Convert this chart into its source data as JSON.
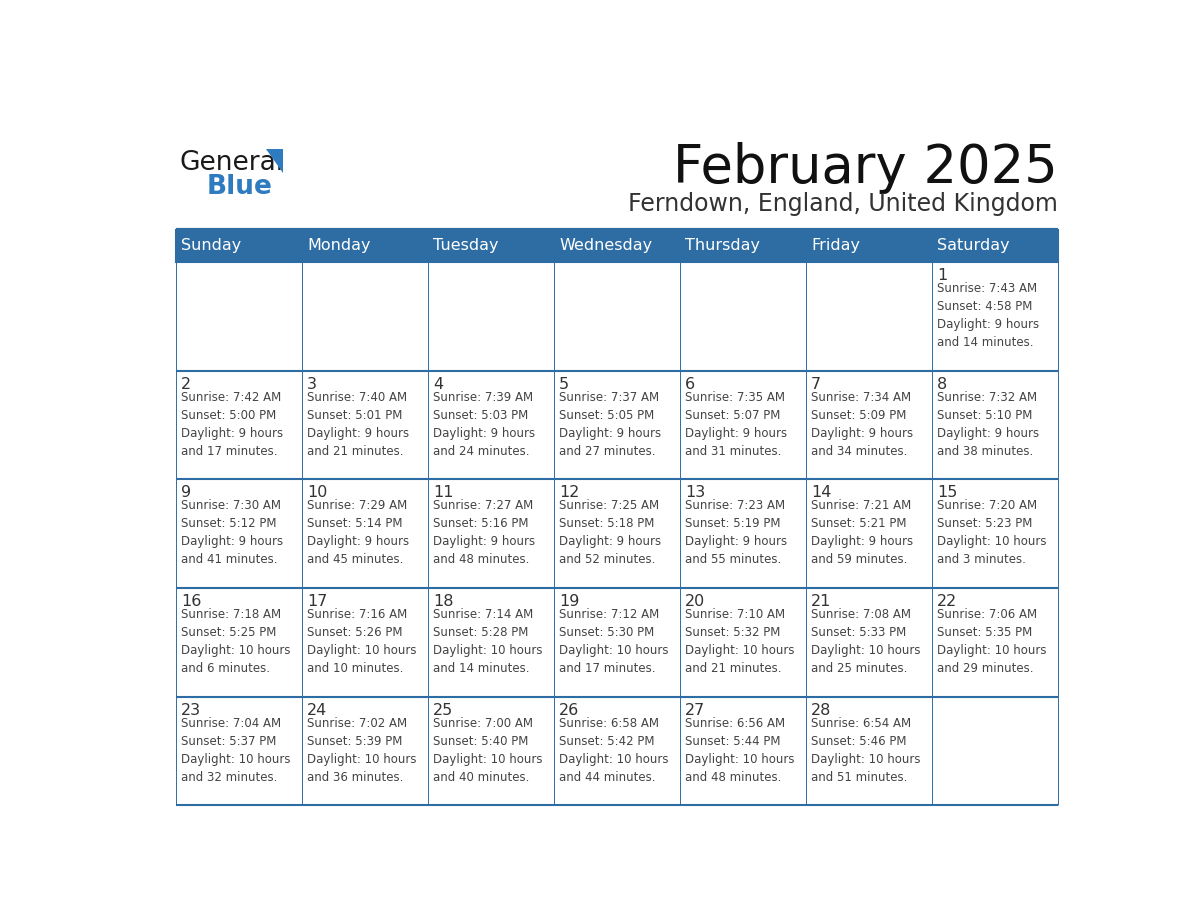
{
  "title": "February 2025",
  "subtitle": "Ferndown, England, United Kingdom",
  "days_of_week": [
    "Sunday",
    "Monday",
    "Tuesday",
    "Wednesday",
    "Thursday",
    "Friday",
    "Saturday"
  ],
  "header_bg": "#2E6DA4",
  "header_text": "#FFFFFF",
  "cell_bg": "#FFFFFF",
  "cell_bg_alt": "#F2F4F7",
  "border_color": "#2E6DA4",
  "row_top_line_color": "#2E6DA4",
  "day_num_color": "#333333",
  "cell_text_color": "#444444",
  "title_color": "#111111",
  "subtitle_color": "#333333",
  "logo_general_color": "#1a1a1a",
  "logo_blue_color": "#2E7BBF",
  "logo_triangle_color": "#2E7BBF",
  "weeks": [
    [
      {
        "day": null,
        "info": null
      },
      {
        "day": null,
        "info": null
      },
      {
        "day": null,
        "info": null
      },
      {
        "day": null,
        "info": null
      },
      {
        "day": null,
        "info": null
      },
      {
        "day": null,
        "info": null
      },
      {
        "day": 1,
        "info": "Sunrise: 7:43 AM\nSunset: 4:58 PM\nDaylight: 9 hours\nand 14 minutes."
      }
    ],
    [
      {
        "day": 2,
        "info": "Sunrise: 7:42 AM\nSunset: 5:00 PM\nDaylight: 9 hours\nand 17 minutes."
      },
      {
        "day": 3,
        "info": "Sunrise: 7:40 AM\nSunset: 5:01 PM\nDaylight: 9 hours\nand 21 minutes."
      },
      {
        "day": 4,
        "info": "Sunrise: 7:39 AM\nSunset: 5:03 PM\nDaylight: 9 hours\nand 24 minutes."
      },
      {
        "day": 5,
        "info": "Sunrise: 7:37 AM\nSunset: 5:05 PM\nDaylight: 9 hours\nand 27 minutes."
      },
      {
        "day": 6,
        "info": "Sunrise: 7:35 AM\nSunset: 5:07 PM\nDaylight: 9 hours\nand 31 minutes."
      },
      {
        "day": 7,
        "info": "Sunrise: 7:34 AM\nSunset: 5:09 PM\nDaylight: 9 hours\nand 34 minutes."
      },
      {
        "day": 8,
        "info": "Sunrise: 7:32 AM\nSunset: 5:10 PM\nDaylight: 9 hours\nand 38 minutes."
      }
    ],
    [
      {
        "day": 9,
        "info": "Sunrise: 7:30 AM\nSunset: 5:12 PM\nDaylight: 9 hours\nand 41 minutes."
      },
      {
        "day": 10,
        "info": "Sunrise: 7:29 AM\nSunset: 5:14 PM\nDaylight: 9 hours\nand 45 minutes."
      },
      {
        "day": 11,
        "info": "Sunrise: 7:27 AM\nSunset: 5:16 PM\nDaylight: 9 hours\nand 48 minutes."
      },
      {
        "day": 12,
        "info": "Sunrise: 7:25 AM\nSunset: 5:18 PM\nDaylight: 9 hours\nand 52 minutes."
      },
      {
        "day": 13,
        "info": "Sunrise: 7:23 AM\nSunset: 5:19 PM\nDaylight: 9 hours\nand 55 minutes."
      },
      {
        "day": 14,
        "info": "Sunrise: 7:21 AM\nSunset: 5:21 PM\nDaylight: 9 hours\nand 59 minutes."
      },
      {
        "day": 15,
        "info": "Sunrise: 7:20 AM\nSunset: 5:23 PM\nDaylight: 10 hours\nand 3 minutes."
      }
    ],
    [
      {
        "day": 16,
        "info": "Sunrise: 7:18 AM\nSunset: 5:25 PM\nDaylight: 10 hours\nand 6 minutes."
      },
      {
        "day": 17,
        "info": "Sunrise: 7:16 AM\nSunset: 5:26 PM\nDaylight: 10 hours\nand 10 minutes."
      },
      {
        "day": 18,
        "info": "Sunrise: 7:14 AM\nSunset: 5:28 PM\nDaylight: 10 hours\nand 14 minutes."
      },
      {
        "day": 19,
        "info": "Sunrise: 7:12 AM\nSunset: 5:30 PM\nDaylight: 10 hours\nand 17 minutes."
      },
      {
        "day": 20,
        "info": "Sunrise: 7:10 AM\nSunset: 5:32 PM\nDaylight: 10 hours\nand 21 minutes."
      },
      {
        "day": 21,
        "info": "Sunrise: 7:08 AM\nSunset: 5:33 PM\nDaylight: 10 hours\nand 25 minutes."
      },
      {
        "day": 22,
        "info": "Sunrise: 7:06 AM\nSunset: 5:35 PM\nDaylight: 10 hours\nand 29 minutes."
      }
    ],
    [
      {
        "day": 23,
        "info": "Sunrise: 7:04 AM\nSunset: 5:37 PM\nDaylight: 10 hours\nand 32 minutes."
      },
      {
        "day": 24,
        "info": "Sunrise: 7:02 AM\nSunset: 5:39 PM\nDaylight: 10 hours\nand 36 minutes."
      },
      {
        "day": 25,
        "info": "Sunrise: 7:00 AM\nSunset: 5:40 PM\nDaylight: 10 hours\nand 40 minutes."
      },
      {
        "day": 26,
        "info": "Sunrise: 6:58 AM\nSunset: 5:42 PM\nDaylight: 10 hours\nand 44 minutes."
      },
      {
        "day": 27,
        "info": "Sunrise: 6:56 AM\nSunset: 5:44 PM\nDaylight: 10 hours\nand 48 minutes."
      },
      {
        "day": 28,
        "info": "Sunrise: 6:54 AM\nSunset: 5:46 PM\nDaylight: 10 hours\nand 51 minutes."
      },
      {
        "day": null,
        "info": null
      }
    ]
  ]
}
